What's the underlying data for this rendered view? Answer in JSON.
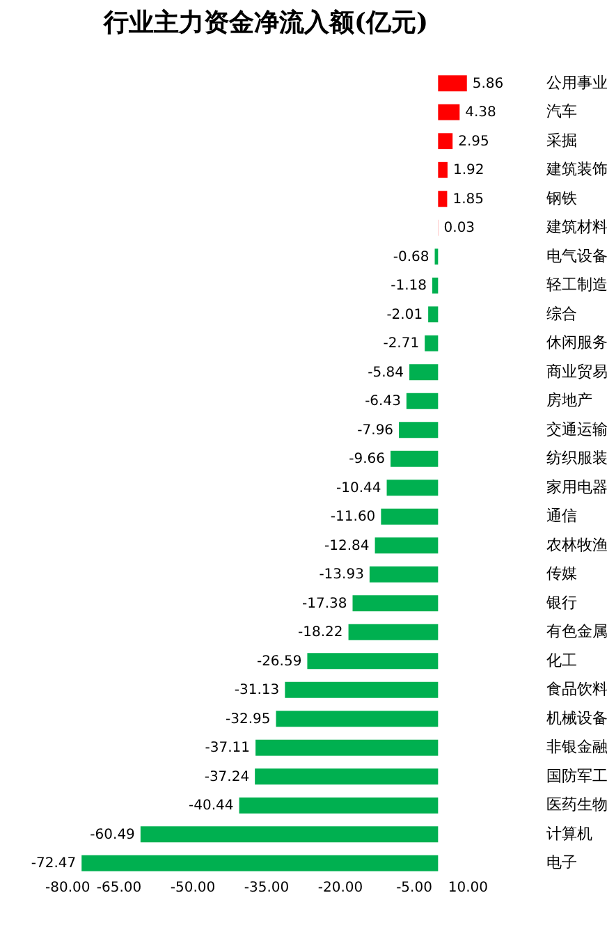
{
  "chart_data": {
    "type": "bar",
    "orientation": "horizontal",
    "title": "行业主力资金净流入额(亿元)",
    "categories": [
      "公用事业",
      "汽车",
      "采掘",
      "建筑装饰",
      "钢铁",
      "建筑材料",
      "电气设备",
      "轻工制造",
      "综合",
      "休闲服务",
      "商业贸易",
      "房地产",
      "交通运输",
      "纺织服装",
      "家用电器",
      "通信",
      "农林牧渔",
      "传媒",
      "银行",
      "有色金属",
      "化工",
      "食品饮料",
      "机械设备",
      "非银金融",
      "国防军工",
      "医药生物",
      "计算机",
      "电子"
    ],
    "values": [
      5.86,
      4.38,
      2.95,
      1.92,
      1.85,
      0.03,
      -0.68,
      -1.18,
      -2.01,
      -2.71,
      -5.84,
      -6.43,
      -7.96,
      -9.66,
      -10.44,
      -11.6,
      -12.84,
      -13.93,
      -17.38,
      -18.22,
      -26.59,
      -31.13,
      -32.95,
      -37.11,
      -37.24,
      -40.44,
      -60.49,
      -72.47
    ],
    "value_labels": [
      "5.86",
      "4.38",
      "2.95",
      "1.92",
      "1.85",
      "0.03",
      "-0.68",
      "-1.18",
      "-2.01",
      "-2.71",
      "-5.84",
      "-6.43",
      "-7.96",
      "-9.66",
      "-10.44",
      "-11.60",
      "-12.84",
      "-13.93",
      "-17.38",
      "-18.22",
      "-26.59",
      "-31.13",
      "-32.95",
      "-37.11",
      "-37.24",
      "-40.44",
      "-60.49",
      "-72.47"
    ],
    "colors": [
      "#ff0000",
      "#ff0000",
      "#ff0000",
      "#ff0000",
      "#ff0000",
      "#ff0000",
      "#00b050",
      "#00b050",
      "#00b050",
      "#00b050",
      "#00b050",
      "#00b050",
      "#00b050",
      "#00b050",
      "#00b050",
      "#00b050",
      "#00b050",
      "#00b050",
      "#00b050",
      "#00b050",
      "#00b050",
      "#00b050",
      "#00b050",
      "#00b050",
      "#00b050",
      "#00b050",
      "#00b050",
      "#00b050"
    ],
    "xlim": [
      -80,
      10
    ],
    "xticks": [
      {
        "value": -80,
        "label": "-80.00"
      },
      {
        "value": -65,
        "label": "-65.00"
      },
      {
        "value": -50,
        "label": "-50.00"
      },
      {
        "value": -35,
        "label": "-35.00"
      },
      {
        "value": -20,
        "label": "-20.00"
      },
      {
        "value": -5,
        "label": "-5.00"
      },
      {
        "value": 10,
        "label": "10.00"
      }
    ]
  }
}
